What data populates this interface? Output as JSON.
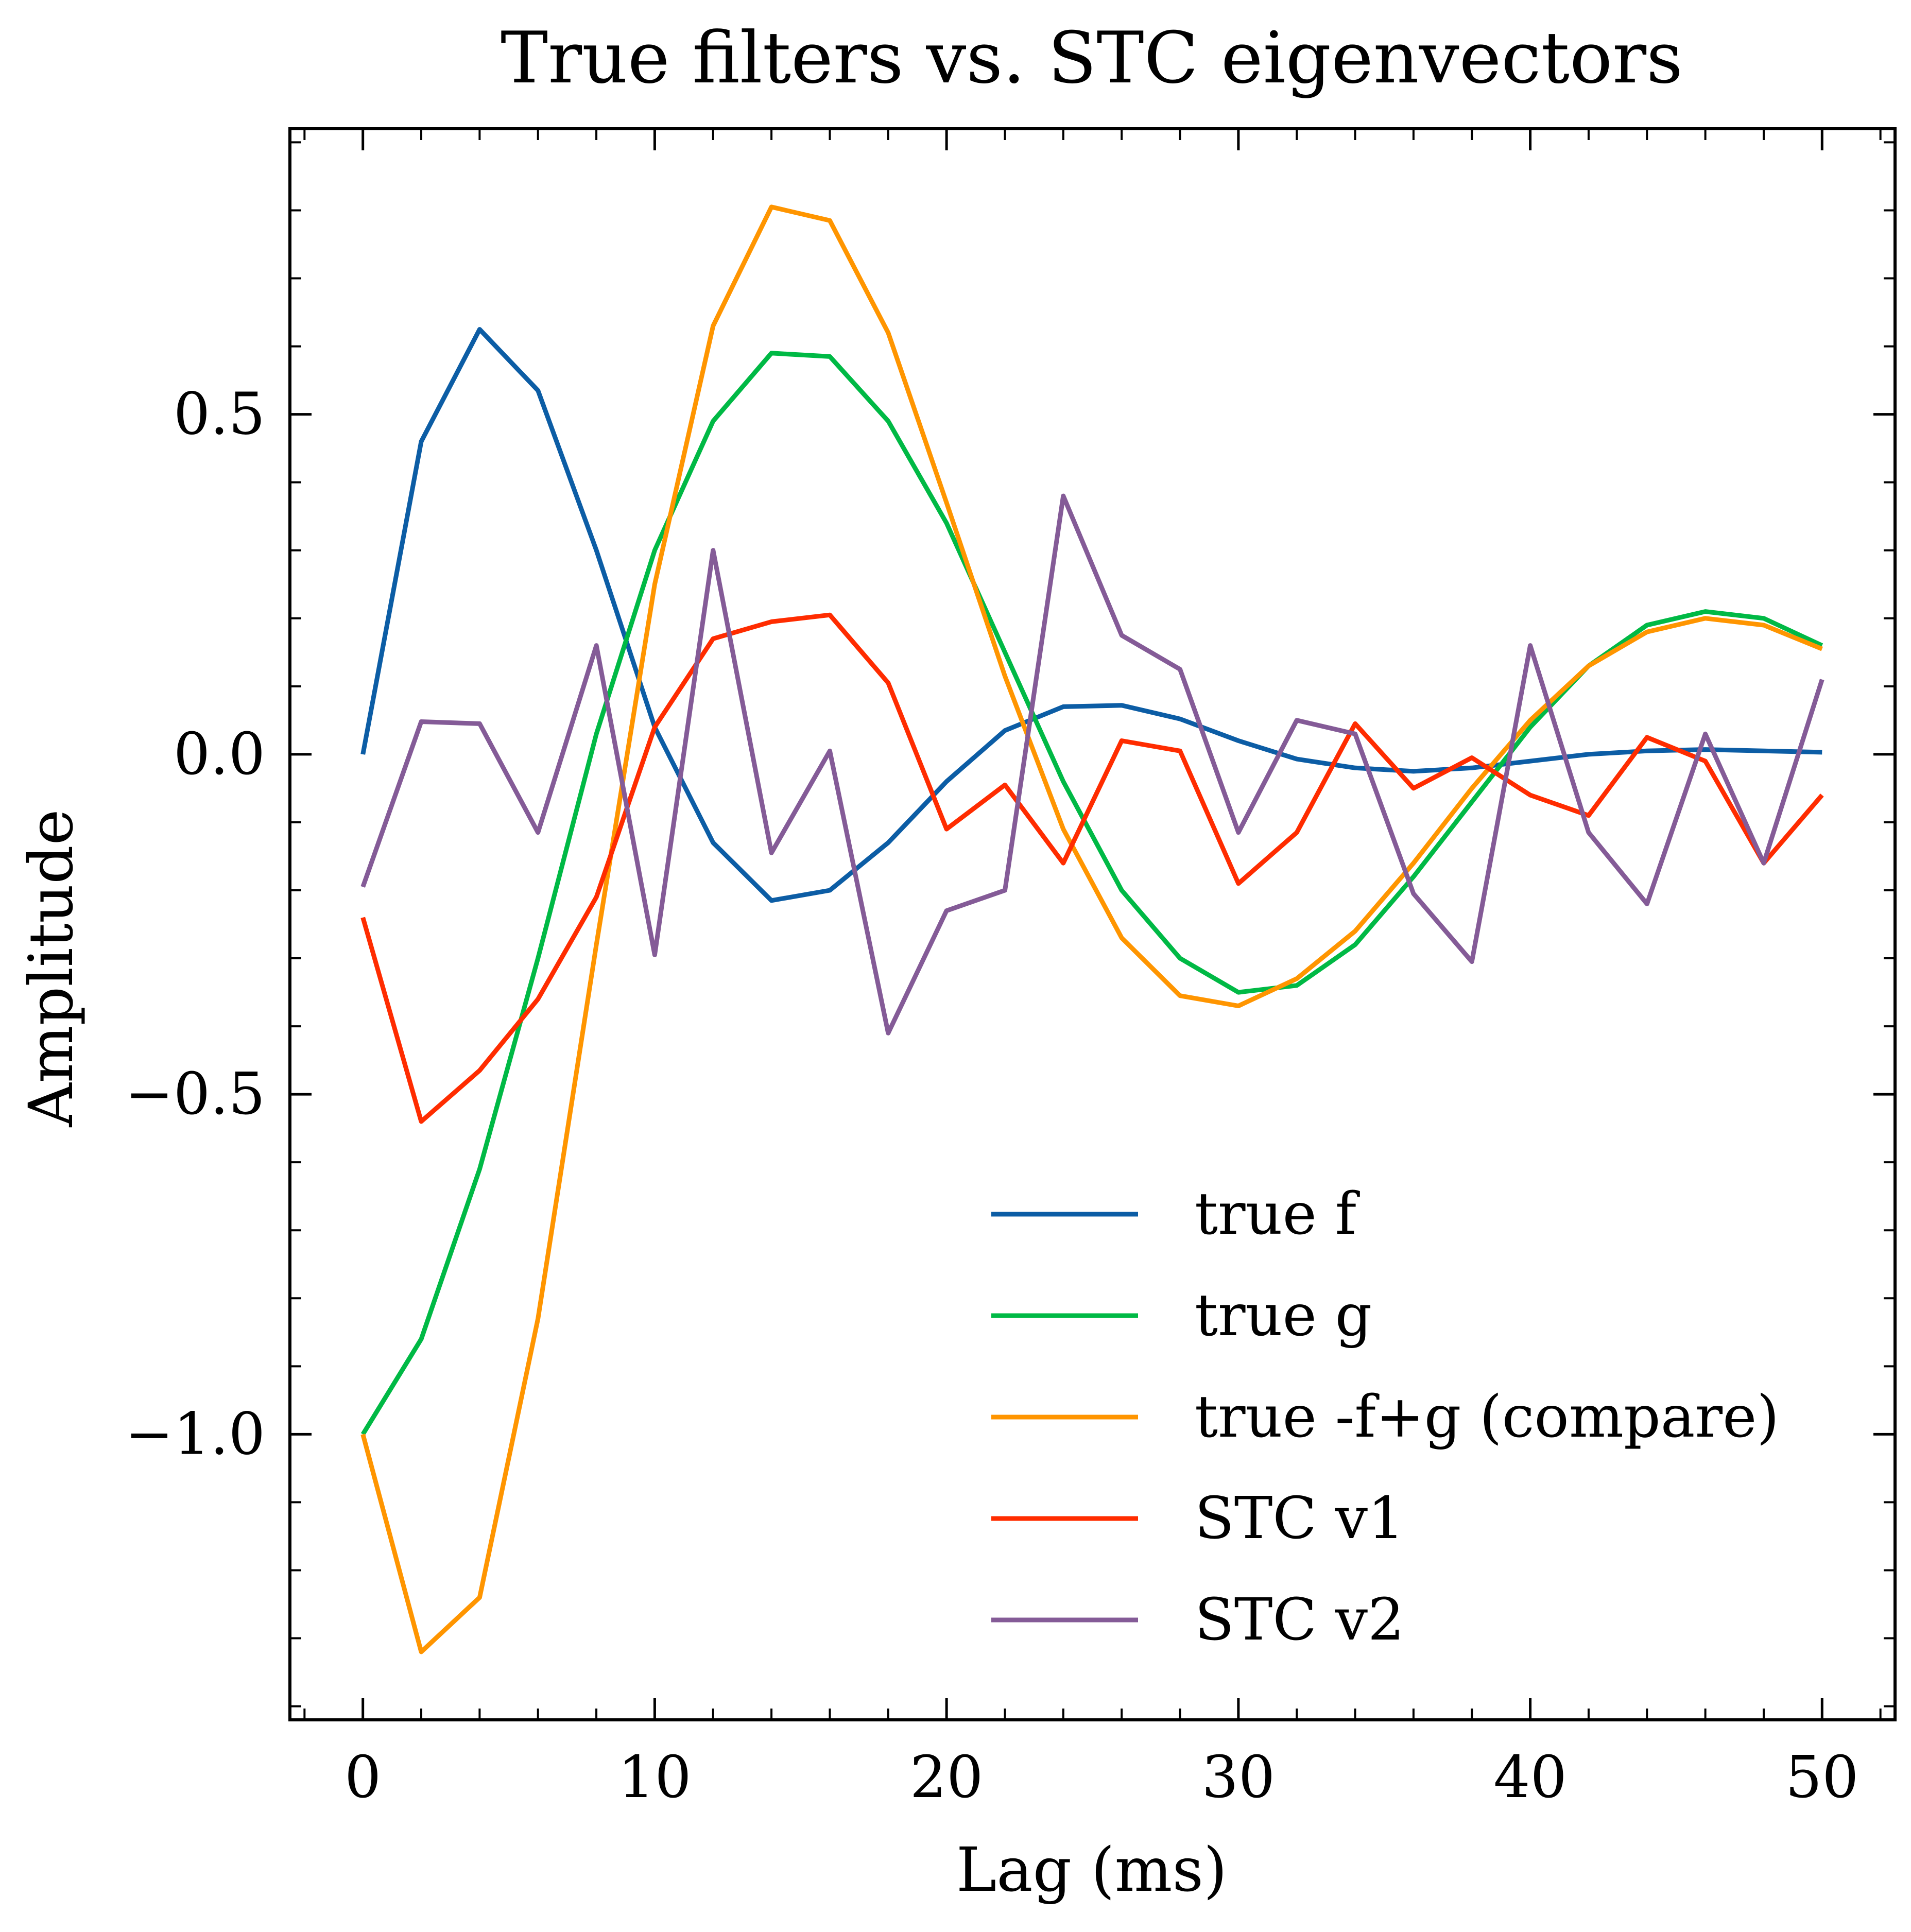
{
  "chart_data": {
    "type": "line",
    "title": "True filters vs. STC eigenvectors",
    "xlabel": "Lag (ms)",
    "ylabel": "Amplitude",
    "xlim": [
      -2.5,
      52.5
    ],
    "ylim": [
      -1.42,
      0.92
    ],
    "xticks": [
      0,
      10,
      20,
      30,
      40,
      50
    ],
    "xtick_labels": [
      "0",
      "10",
      "20",
      "30",
      "40",
      "50"
    ],
    "yticks": [
      0.5,
      0.0,
      -0.5,
      -1.0
    ],
    "ytick_labels": [
      "0.5",
      "0.0",
      "−0.5",
      "−1.0"
    ],
    "grid": false,
    "legend_position": "lower-right",
    "x": [
      0,
      2,
      4,
      6,
      8,
      10,
      12,
      14,
      16,
      18,
      20,
      22,
      24,
      26,
      28,
      30,
      32,
      34,
      36,
      38,
      40,
      42,
      44,
      46,
      48,
      50
    ],
    "series": [
      {
        "name": "true f",
        "color": "#0C5DA5",
        "values": [
          0.0,
          0.46,
          0.625,
          0.535,
          0.3,
          0.04,
          -0.13,
          -0.215,
          -0.2,
          -0.13,
          -0.04,
          0.035,
          0.07,
          0.072,
          0.052,
          0.02,
          -0.007,
          -0.02,
          -0.025,
          -0.02,
          -0.01,
          0.0,
          0.005,
          0.007,
          0.005,
          0.003
        ]
      },
      {
        "name": "true g",
        "color": "#00B945",
        "values": [
          -1.0,
          -0.86,
          -0.61,
          -0.3,
          0.03,
          0.3,
          0.49,
          0.59,
          0.585,
          0.49,
          0.34,
          0.15,
          -0.04,
          -0.2,
          -0.3,
          -0.35,
          -0.34,
          -0.28,
          -0.18,
          -0.07,
          0.04,
          0.13,
          0.19,
          0.21,
          0.2,
          0.16
        ]
      },
      {
        "name": "true -f+g (compare)",
        "color": "#FF9500",
        "values": [
          -1.0,
          -1.32,
          -1.24,
          -0.83,
          -0.28,
          0.25,
          0.63,
          0.805,
          0.785,
          0.62,
          0.37,
          0.115,
          -0.11,
          -0.27,
          -0.355,
          -0.37,
          -0.33,
          -0.26,
          -0.16,
          -0.05,
          0.05,
          0.13,
          0.18,
          0.2,
          0.19,
          0.155
        ]
      },
      {
        "name": "STC v1",
        "color": "#FF2C00",
        "values": [
          -0.24,
          -0.54,
          -0.465,
          -0.36,
          -0.21,
          0.04,
          0.17,
          0.195,
          0.205,
          0.105,
          -0.11,
          -0.045,
          -0.16,
          0.02,
          0.005,
          -0.19,
          -0.115,
          0.045,
          -0.05,
          -0.005,
          -0.06,
          -0.09,
          0.025,
          -0.01,
          -0.16,
          -0.06
        ]
      },
      {
        "name": "STC v2",
        "color": "#845B97",
        "values": [
          -0.195,
          0.048,
          0.045,
          -0.115,
          0.16,
          -0.295,
          0.3,
          -0.145,
          0.005,
          -0.41,
          -0.23,
          -0.2,
          0.38,
          0.175,
          0.125,
          -0.115,
          0.05,
          0.03,
          -0.205,
          -0.305,
          0.16,
          -0.115,
          -0.22,
          0.03,
          -0.16,
          0.11
        ]
      }
    ]
  }
}
